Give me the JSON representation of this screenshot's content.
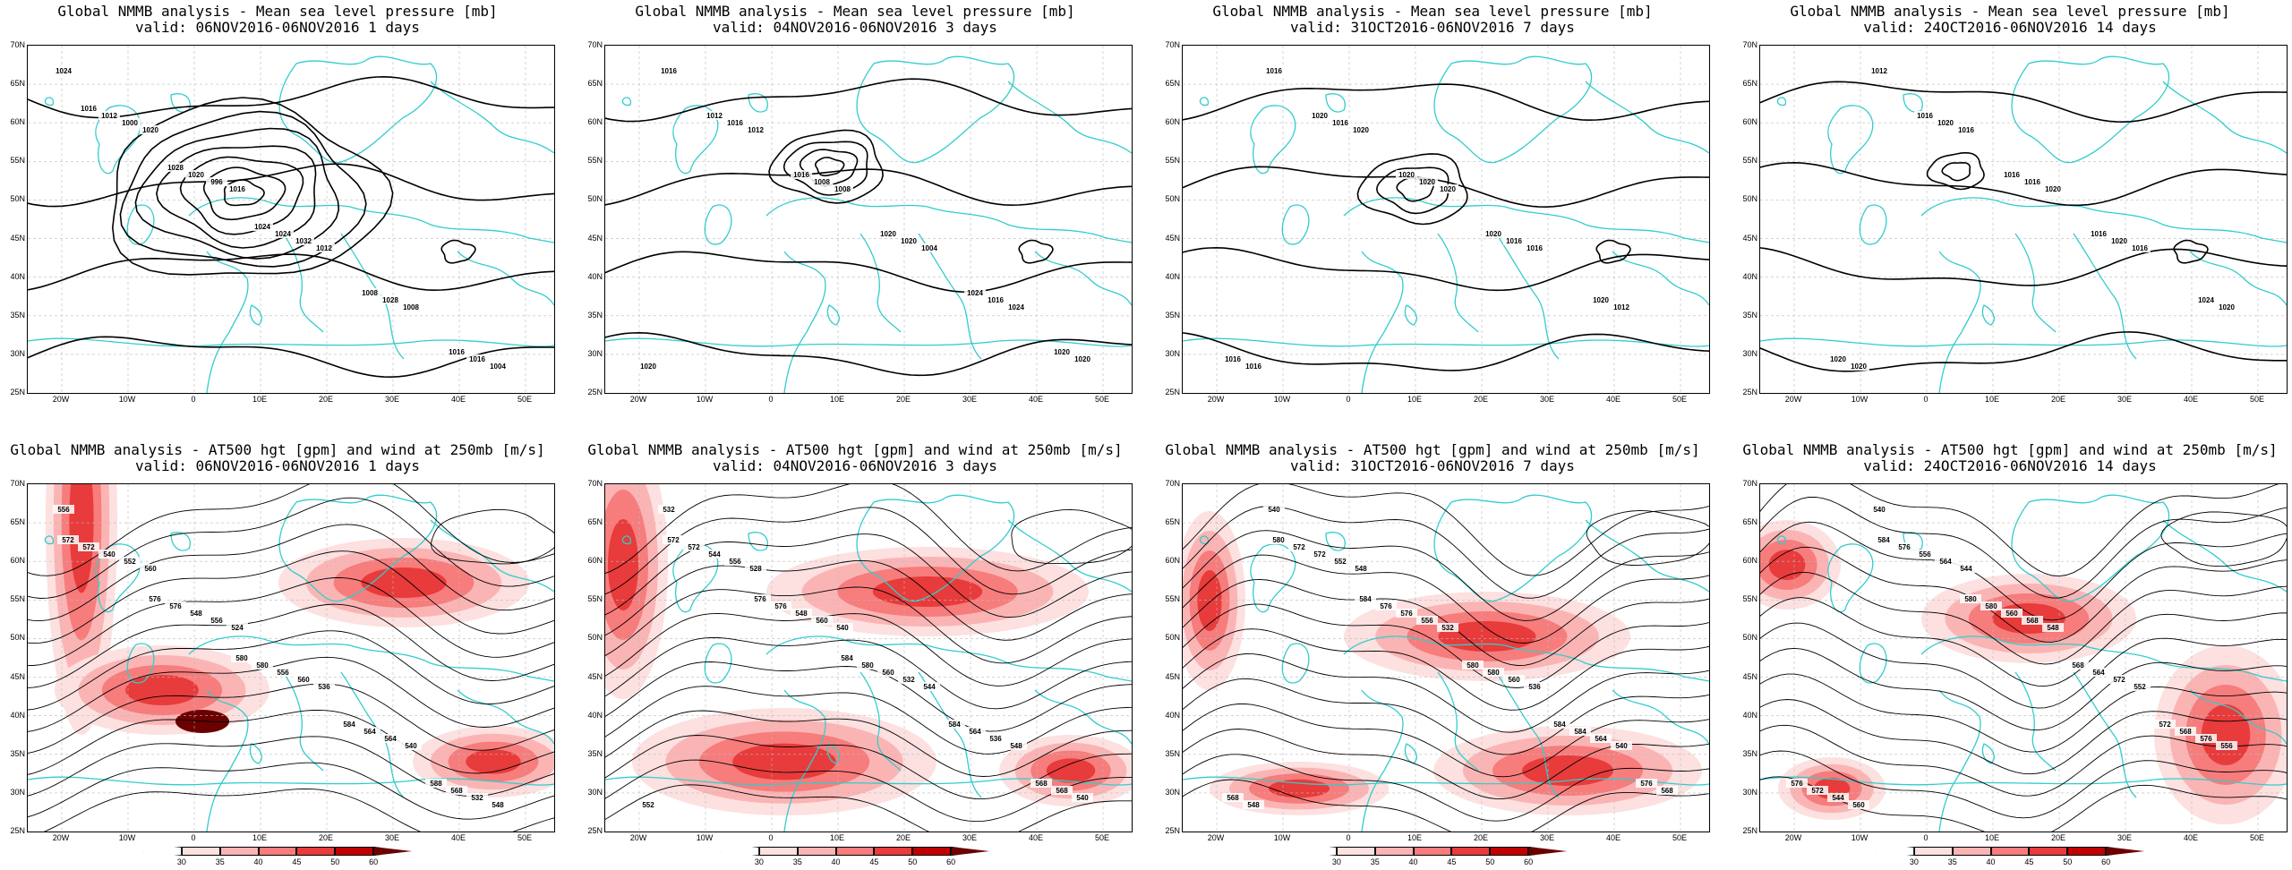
{
  "rows": [
    {
      "kind": "mslp",
      "panels": [
        {
          "title1": "Global NMMB analysis - Mean sea level pressure [mb]",
          "title2": "valid: 06NOV2016-06NOV2016  1 days",
          "labels": [
            "1024",
            "1020",
            "1016",
            "1012",
            "1008",
            "1004",
            "1000",
            "996",
            "1032",
            "1028",
            "1016",
            "1012",
            "1020",
            "1024",
            "1008",
            "1016",
            "1016",
            "1028",
            "1024"
          ]
        },
        {
          "title1": "Global NMMB analysis - Mean sea level pressure [mb]",
          "title2": "valid: 04NOV2016-06NOV2016  3 days",
          "labels": [
            "1016",
            "1012",
            "1008",
            "1004",
            "1024",
            "1020",
            "1016",
            "1008",
            "1020",
            "1016",
            "1020",
            "1012",
            "1016",
            "1020",
            "1024",
            "1020"
          ]
        },
        {
          "title1": "Global NMMB analysis - Mean sea level pressure [mb]",
          "title2": "valid: 31OCT2016-06NOV2016  7 days",
          "labels": [
            "1016",
            "1020",
            "1020",
            "1016",
            "1012",
            "1016",
            "1016",
            "1020",
            "1016",
            "1020",
            "1016",
            "1020",
            "1020",
            "1020"
          ]
        },
        {
          "title1": "Global NMMB analysis - Mean sea level pressure [mb]",
          "title2": "valid: 24OCT2016-06NOV2016  14 days",
          "labels": [
            "1012",
            "1016",
            "1020",
            "1016",
            "1020",
            "1020",
            "1020",
            "1016",
            "1020",
            "1024",
            "1020",
            "1016",
            "1016",
            "1016"
          ]
        }
      ]
    },
    {
      "kind": "z500",
      "panels": [
        {
          "title1": "Global NMMB analysis - AT500 hgt [gpm] and wind at 250mb [m/s]",
          "title2": "valid: 06NOV2016-06NOV2016  1 days",
          "labels": [
            "556",
            "560",
            "524",
            "536",
            "540",
            "548",
            "552",
            "556",
            "560",
            "564",
            "532",
            "540",
            "548",
            "556",
            "564",
            "568",
            "572",
            "576",
            "580",
            "584",
            "588",
            "572",
            "576",
            "580"
          ]
        },
        {
          "title1": "Global NMMB analysis - AT500 hgt [gpm] and wind at 250mb [m/s]",
          "title2": "valid: 04NOV2016-06NOV2016  3 days",
          "labels": [
            "532",
            "528",
            "540",
            "544",
            "548",
            "552",
            "556",
            "560",
            "532",
            "536",
            "540",
            "544",
            "548",
            "560",
            "564",
            "568",
            "572",
            "576",
            "580",
            "584",
            "568",
            "572",
            "576",
            "584"
          ]
        },
        {
          "title1": "Global NMMB analysis - AT500 hgt [gpm] and wind at 250mb [m/s]",
          "title2": "valid: 31OCT2016-06NOV2016  7 days",
          "labels": [
            "540",
            "548",
            "532",
            "536",
            "540",
            "548",
            "552",
            "556",
            "560",
            "564",
            "568",
            "572",
            "576",
            "580",
            "584",
            "568",
            "572",
            "576",
            "580",
            "584",
            "576",
            "580",
            "584"
          ]
        },
        {
          "title1": "Global NMMB analysis - AT500 hgt [gpm] and wind at 250mb [m/s]",
          "title2": "valid: 24OCT2016-06NOV2016  14 days",
          "labels": [
            "540",
            "544",
            "548",
            "552",
            "556",
            "560",
            "564",
            "568",
            "572",
            "576",
            "544",
            "556",
            "560",
            "564",
            "568",
            "572",
            "576",
            "580",
            "568",
            "572",
            "576",
            "584",
            "580"
          ]
        }
      ]
    }
  ],
  "lat_labels": [
    "70N",
    "65N",
    "60N",
    "55N",
    "50N",
    "45N",
    "40N",
    "35N",
    "30N",
    "25N"
  ],
  "lon_labels": [
    "20W",
    "10W",
    "0",
    "10E",
    "20E",
    "30E",
    "40E",
    "50E"
  ],
  "colorbar": {
    "ticks": [
      "30",
      "35",
      "40",
      "45",
      "50",
      "60"
    ],
    "colors": [
      "#ffffff",
      "#fde0e0",
      "#fbb4b4",
      "#f77c7c",
      "#e83b3b",
      "#c00000",
      "#6b0000"
    ]
  },
  "colors": {
    "coast": "#33cccc",
    "contour": "#000000",
    "grid": "#bbbbbb"
  }
}
